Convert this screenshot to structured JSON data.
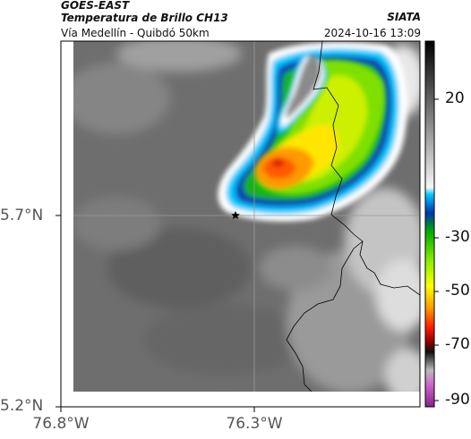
{
  "header": {
    "satellite": "GOES-EAST",
    "product": "Temperatura de Brillo CH13",
    "route": "Vía Medellín - Quibdó 50km",
    "organization": "SIATA",
    "timestamp": "2024-10-16 13:09"
  },
  "axes": {
    "lat_ticks": [
      "5.7°N",
      "5.2°N"
    ],
    "lon_ticks": [
      "76.8°W",
      "76.3°W"
    ]
  },
  "colorbar": {
    "ticks": [
      "20",
      "-30",
      "-50",
      "-70",
      "-90"
    ]
  },
  "colors": {
    "frame": "#000000",
    "grid": "#9a9a9a",
    "border_line": "#000000"
  },
  "icons": {
    "location_marker": "star-icon"
  }
}
